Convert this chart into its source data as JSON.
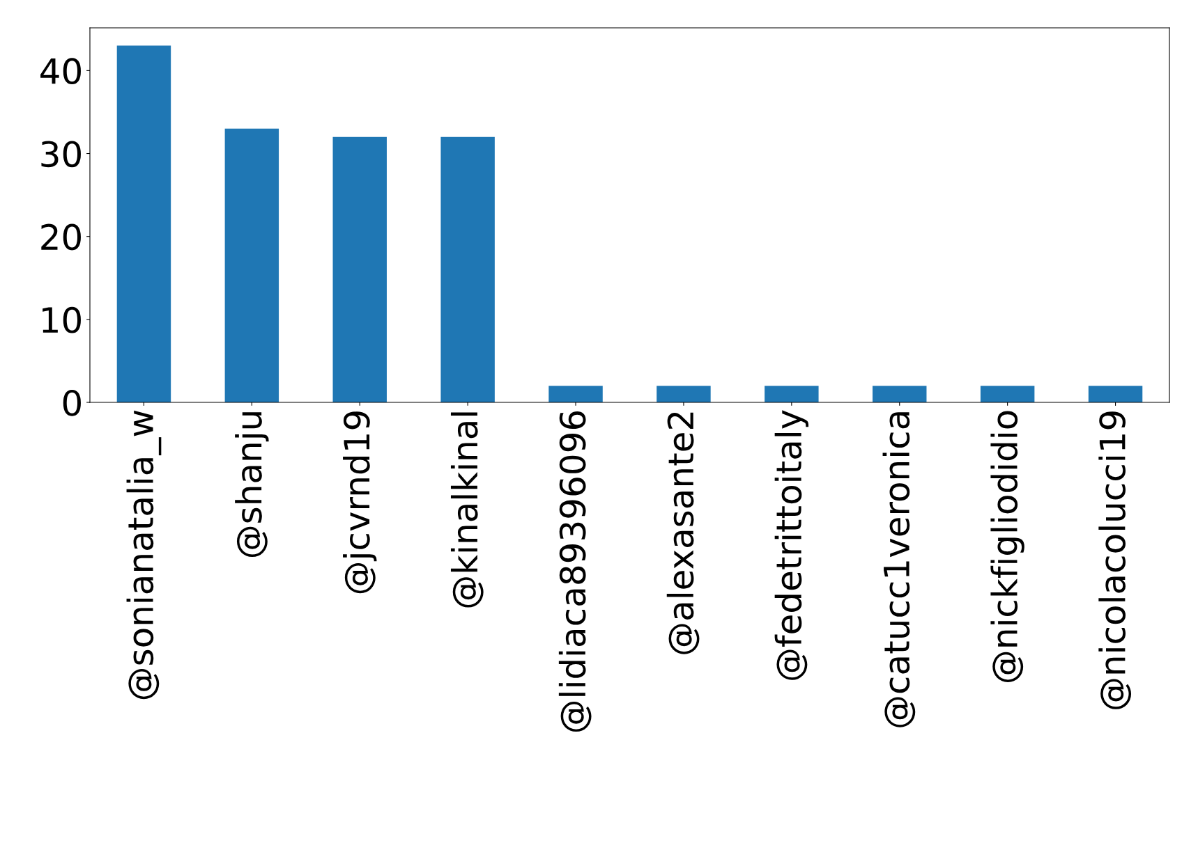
{
  "chart_data": {
    "type": "bar",
    "categories": [
      "@sonianatalia_w",
      "@shanju",
      "@jcvrnd19",
      "@kinalkinal",
      "@lidiaca89396096",
      "@alexasante2",
      "@fedetrittoitaly",
      "@catucc1veronica",
      "@nickfigliodidio",
      "@nicolacolucci19"
    ],
    "values": [
      43,
      33,
      32,
      32,
      2,
      2,
      2,
      2,
      2,
      2
    ],
    "color": "#1f77b4",
    "ylim": [
      0,
      45.15
    ],
    "yticks": [
      0,
      10,
      20,
      30,
      40
    ],
    "grid": false,
    "legend": false
  }
}
